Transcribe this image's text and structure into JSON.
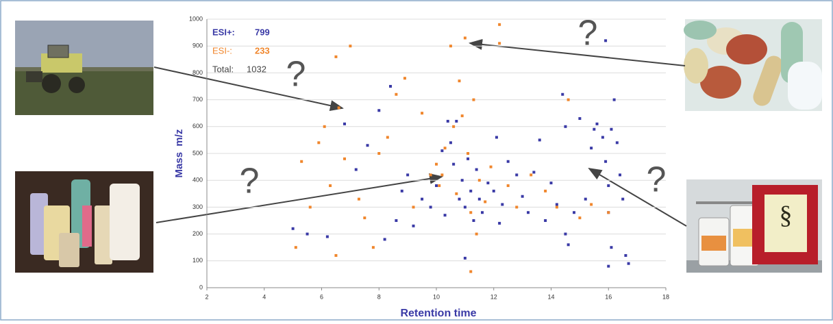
{
  "chart_data": {
    "type": "scatter",
    "xlabel": "Retention time",
    "ylabel": "Mass  m/z",
    "xlim": [
      2,
      18
    ],
    "xticks": [
      2,
      4,
      6,
      8,
      10,
      12,
      14,
      16,
      18
    ],
    "ylim": [
      0,
      1000
    ],
    "yticks": [
      0,
      100,
      200,
      300,
      400,
      500,
      600,
      700,
      800,
      900,
      1000
    ],
    "grid": true,
    "series": [
      {
        "name": "ESI+:",
        "color": "#3a3aa6",
        "count": 799,
        "x": [
          5.0,
          5.5,
          6.2,
          6.8,
          7.2,
          7.6,
          8.0,
          8.2,
          8.4,
          8.6,
          8.8,
          9.0,
          9.2,
          9.5,
          9.8,
          10.0,
          10.2,
          10.3,
          10.5,
          10.6,
          10.7,
          10.8,
          10.9,
          11.0,
          11.1,
          11.2,
          11.3,
          11.4,
          11.5,
          11.6,
          11.8,
          12.0,
          12.1,
          12.3,
          12.5,
          12.8,
          13.0,
          13.2,
          13.4,
          13.6,
          13.8,
          14.0,
          14.2,
          14.4,
          14.5,
          14.6,
          14.8,
          15.0,
          15.2,
          15.4,
          15.5,
          15.6,
          15.8,
          15.9,
          16.0,
          16.0,
          16.1,
          16.1,
          16.2,
          16.3,
          16.4,
          16.5,
          16.6,
          16.7,
          11.0,
          10.4,
          12.2,
          16.0,
          15.9,
          14.5
        ],
        "values": [
          220,
          200,
          190,
          610,
          440,
          530,
          660,
          180,
          750,
          250,
          360,
          420,
          230,
          330,
          300,
          380,
          510,
          270,
          540,
          460,
          620,
          330,
          400,
          300,
          480,
          360,
          250,
          440,
          330,
          280,
          390,
          360,
          560,
          310,
          470,
          420,
          340,
          280,
          430,
          550,
          250,
          390,
          310,
          720,
          200,
          160,
          280,
          630,
          330,
          520,
          590,
          610,
          560,
          470,
          380,
          280,
          590,
          150,
          700,
          540,
          420,
          330,
          120,
          90,
          110,
          620,
          240,
          80,
          920,
          600
        ]
      },
      {
        "name": "ESI-:",
        "color": "#f0862c",
        "count": 233,
        "x": [
          5.1,
          5.3,
          5.6,
          5.9,
          6.1,
          6.3,
          6.5,
          6.6,
          6.8,
          7.0,
          7.3,
          7.5,
          7.8,
          8.0,
          8.3,
          8.6,
          8.9,
          9.2,
          9.5,
          9.8,
          10.0,
          10.1,
          10.3,
          10.5,
          10.6,
          10.7,
          10.8,
          10.9,
          11.0,
          11.1,
          11.2,
          11.3,
          11.5,
          11.7,
          11.9,
          12.2,
          12.5,
          12.8,
          13.3,
          13.8,
          14.2,
          14.6,
          15.0,
          15.4,
          16.0,
          11.2,
          6.5,
          12.2,
          11.4,
          10.2
        ],
        "values": [
          150,
          470,
          300,
          540,
          600,
          380,
          860,
          670,
          480,
          900,
          330,
          260,
          150,
          500,
          560,
          720,
          780,
          300,
          650,
          420,
          460,
          380,
          520,
          900,
          600,
          350,
          770,
          640,
          930,
          500,
          280,
          700,
          400,
          320,
          450,
          980,
          380,
          300,
          420,
          360,
          300,
          700,
          260,
          310,
          280,
          60,
          120,
          910,
          200,
          420
        ]
      }
    ],
    "total_label": "Total:",
    "total": 1032,
    "annotations": [
      "?",
      "?",
      "?",
      "?"
    ]
  }
}
